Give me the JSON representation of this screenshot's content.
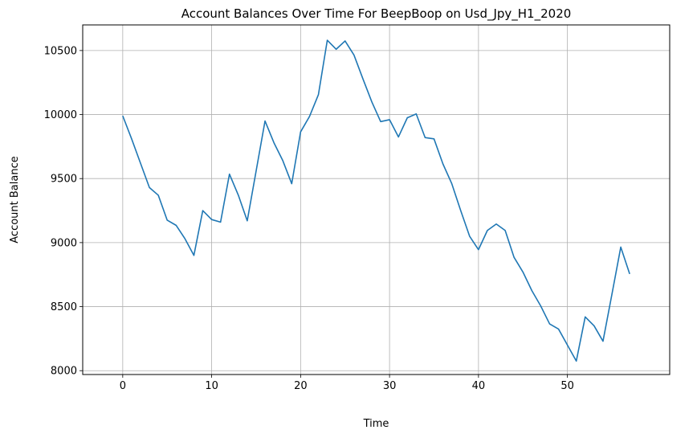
{
  "chart_data": {
    "type": "line",
    "title": "Account Balances Over Time For BeepBoop on Usd_Jpy_H1_2020",
    "xlabel": "Time",
    "ylabel": "Account Balance",
    "xlim": [
      -4.5,
      61.5
    ],
    "ylim": [
      7970,
      10700
    ],
    "grid": true,
    "xticks": [
      0,
      10,
      20,
      30,
      40,
      50
    ],
    "yticks": [
      8000,
      8500,
      9000,
      9500,
      10000,
      10500
    ],
    "series": [
      {
        "color": "#1f77b4",
        "x": [
          0,
          1,
          2,
          3,
          4,
          5,
          6,
          7,
          8,
          9,
          10,
          11,
          12,
          13,
          14,
          15,
          16,
          17,
          18,
          19,
          20,
          21,
          22,
          23,
          24,
          25,
          26,
          27,
          28,
          29,
          30,
          31,
          32,
          33,
          34,
          35,
          36,
          37,
          38,
          39,
          40,
          41,
          42,
          43,
          44,
          45,
          46,
          47,
          48,
          49,
          50,
          51,
          52,
          53,
          54,
          55,
          56,
          57
        ],
        "y": [
          9990,
          9810,
          9620,
          9430,
          9370,
          9175,
          9135,
          9030,
          8900,
          9250,
          9180,
          9160,
          9535,
          9370,
          9170,
          9560,
          9950,
          9780,
          9640,
          9460,
          9865,
          9985,
          10155,
          10580,
          10510,
          10575,
          10465,
          10280,
          10100,
          9945,
          9960,
          9825,
          9975,
          10005,
          9820,
          9810,
          9615,
          9460,
          9250,
          9050,
          8945,
          9095,
          9145,
          9095,
          8885,
          8770,
          8625,
          8505,
          8365,
          8325,
          8200,
          8075,
          8420,
          8350,
          8230,
          8595,
          8965,
          8755
        ]
      }
    ]
  }
}
